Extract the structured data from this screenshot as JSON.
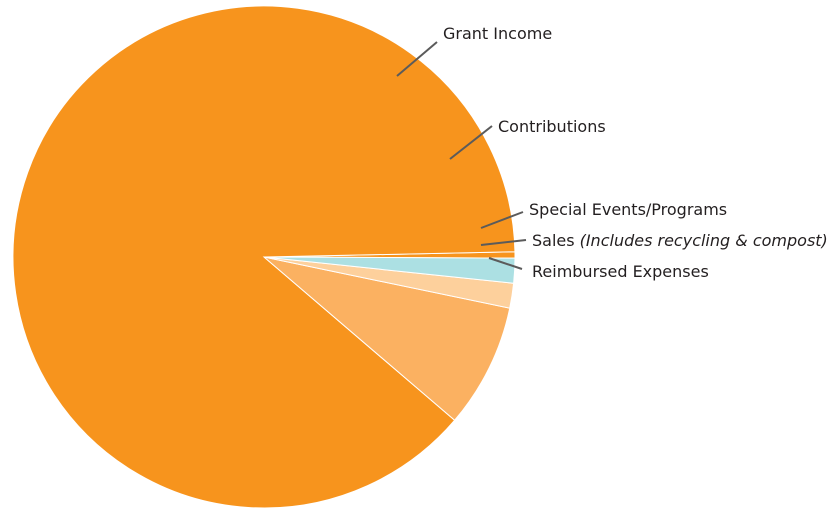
{
  "chart_data": {
    "type": "pie",
    "slices": [
      {
        "label": "Reimbursed Expenses",
        "note": "",
        "value": 0.4,
        "color": "#f7941d"
      },
      {
        "label": "Grant Income",
        "note": "",
        "value": 88.4,
        "color": "#f7941d"
      },
      {
        "label": "Contributions",
        "note": "",
        "value": 8.0,
        "color": "#fbb161"
      },
      {
        "label": "Special Events/Programs",
        "note": "",
        "value": 1.6,
        "color": "#fdd09c"
      },
      {
        "label": "Sales",
        "note": "(Includes recycling & compost)",
        "value": 1.6,
        "color": "#ace0e3"
      }
    ],
    "legend": "none (callout labels)"
  }
}
